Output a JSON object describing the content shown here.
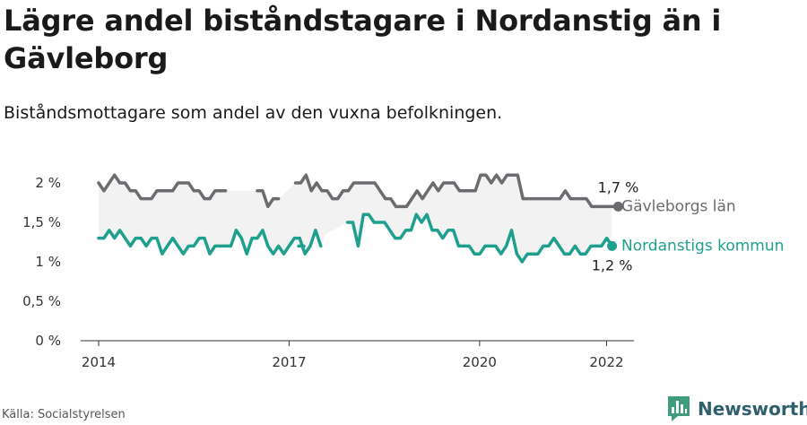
{
  "title": "Lägre andel biståndstagare i Nordanstig än i Gävleborg",
  "subtitle": "Biståndsmottagare som andel av den vuxna befolkningen.",
  "source": "Källa: Socialstyrelsen",
  "brand": {
    "name": "Newsworthy"
  },
  "colors": {
    "county": "#6b6b70",
    "municipality": "#1fa08e",
    "band": "#f2f2f2",
    "axis": "#333333"
  },
  "chart_data": {
    "type": "line",
    "x_unit": "year",
    "xlim": [
      2014.0,
      2022.05
    ],
    "ylim": [
      0,
      2
    ],
    "y_ticks": [
      {
        "value": 0,
        "label": "0 %"
      },
      {
        "value": 0.5,
        "label": "0,5 %"
      },
      {
        "value": 1,
        "label": "1 %"
      },
      {
        "value": 1.5,
        "label": "1,5 %"
      },
      {
        "value": 2,
        "label": "2 %"
      }
    ],
    "x_ticks": [
      {
        "value": 2014,
        "label": "2014"
      },
      {
        "value": 2017,
        "label": "2017"
      },
      {
        "value": 2020,
        "label": "2020"
      },
      {
        "value": 2022,
        "label": "2022"
      }
    ],
    "grid": false,
    "series": [
      {
        "name": "Gävleborgs län",
        "color": "#6b6b70",
        "end_label": "1,7 %",
        "segments": [
          {
            "x_start": 2014.0,
            "values": [
              2.0,
              1.9,
              2.0,
              2.1,
              2.0,
              2.0,
              1.9,
              1.9,
              1.8,
              1.8,
              1.8,
              1.9,
              1.9,
              1.9,
              1.9,
              2.0,
              2.0,
              2.0,
              1.9,
              1.9,
              1.8,
              1.8,
              1.9,
              1.9,
              1.9
            ]
          },
          {
            "x_start": 2016.5,
            "values": [
              1.9,
              1.9,
              1.7,
              1.8,
              1.8
            ]
          },
          {
            "x_start": 2017.1,
            "values": [
              2.0,
              2.0,
              2.1,
              1.9,
              2.0,
              1.9,
              1.9,
              1.8,
              1.8,
              1.9,
              1.9,
              2.0,
              2.0,
              2.0,
              2.0,
              2.0,
              1.9,
              1.8,
              1.8,
              1.7,
              1.7,
              1.7,
              1.8,
              1.9,
              1.8,
              1.9,
              2.0,
              1.9,
              2.0,
              2.0,
              2.0,
              1.9,
              1.9,
              1.9,
              1.9,
              2.1,
              2.1,
              2.0,
              2.1,
              2.0,
              2.1,
              2.1,
              2.1,
              1.8,
              1.8,
              1.8,
              1.8,
              1.8,
              1.8,
              1.8,
              1.8,
              1.9,
              1.8,
              1.8,
              1.8,
              1.8,
              1.7,
              1.7,
              1.7,
              1.7,
              1.7,
              1.7
            ]
          }
        ]
      },
      {
        "name": "Nordanstigs kommun",
        "color": "#1fa08e",
        "end_label": "1,2 %",
        "segments": [
          {
            "x_start": 2014.0,
            "values": [
              1.3,
              1.3,
              1.4,
              1.3,
              1.4,
              1.3,
              1.2,
              1.3,
              1.3,
              1.2,
              1.3,
              1.3,
              1.1,
              1.2,
              1.3,
              1.2,
              1.1,
              1.2,
              1.2,
              1.3,
              1.3,
              1.1,
              1.2,
              1.2,
              1.2,
              1.2,
              1.4,
              1.3,
              1.1,
              1.3,
              1.3,
              1.4,
              1.2,
              1.1,
              1.2,
              1.1,
              1.2,
              1.3,
              1.3,
              1.1,
              1.2,
              1.4,
              1.2
            ]
          },
          {
            "x_start": 2017.15,
            "values": [
              1.2,
              1.2
            ]
          },
          {
            "x_start": 2017.92,
            "values": [
              1.5,
              1.5,
              1.2,
              1.6,
              1.6,
              1.5,
              1.5,
              1.5,
              1.4,
              1.3,
              1.3,
              1.4,
              1.4,
              1.6,
              1.5,
              1.6,
              1.4,
              1.4,
              1.3,
              1.4,
              1.4,
              1.2,
              1.2,
              1.2,
              1.1,
              1.1,
              1.2,
              1.2,
              1.2,
              1.1,
              1.2,
              1.4,
              1.1,
              1.0,
              1.1,
              1.1,
              1.1,
              1.2,
              1.2,
              1.3,
              1.2,
              1.1,
              1.1,
              1.2,
              1.1,
              1.1,
              1.2,
              1.2,
              1.2,
              1.3,
              1.2
            ]
          }
        ]
      }
    ],
    "series_labels": [
      "Gävleborgs län",
      "Nordanstigs kommun"
    ]
  }
}
